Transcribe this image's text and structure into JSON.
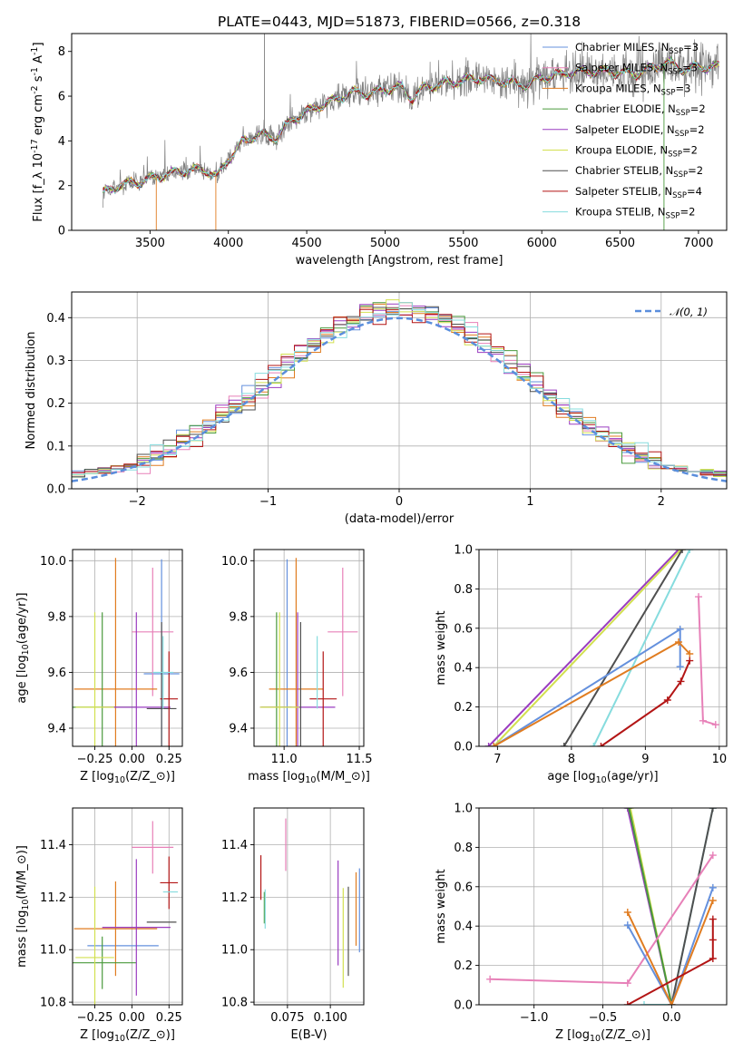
{
  "colors": {
    "chabrier_miles": "#6490dd",
    "salpeter_miles": "#e780b8",
    "kroupa_miles": "#e07c20",
    "chabrier_elodie": "#4a9a3c",
    "salpeter_elodie": "#9a3cc0",
    "kroupa_elodie": "#d2e050",
    "chabrier_stelib": "#4f4f4f",
    "salpeter_stelib": "#b31515",
    "kroupa_stelib": "#86dcde",
    "data": "#808080",
    "gaussian": "#5a8edc",
    "grid": "#b0b0b0"
  },
  "chart_data": [
    {
      "type": "line",
      "panel": "spectrum",
      "title": "PLATE=0443, MJD=51873, FIBERID=0566, z=0.318",
      "xlabel": "wavelength [Angstrom, rest frame]",
      "ylabel": "Flux [f$_\\lambda 10^{-17}$ erg cm$^{-2}$ s$^{-1}$ A$^{-1}$]",
      "xlim": [
        3000,
        7180
      ],
      "ylim": [
        0,
        8.8
      ],
      "xticks": [
        3500,
        4000,
        4500,
        5000,
        5500,
        6000,
        6500,
        7000
      ],
      "yticks": [
        0,
        2,
        4,
        6,
        8
      ],
      "grid": false,
      "legend_position": "right",
      "legend": [
        {
          "key": "chabrier_miles",
          "label": "Chabrier MILES, N",
          "sub": "SSP",
          "suffix": "=3"
        },
        {
          "key": "salpeter_miles",
          "label": "Salpeter MILES, N",
          "sub": "SSP",
          "suffix": "=3"
        },
        {
          "key": "kroupa_miles",
          "label": "Kroupa MILES, N",
          "sub": "SSP",
          "suffix": "=3"
        },
        {
          "key": "chabrier_elodie",
          "label": "Chabrier ELODIE, N",
          "sub": "SSP",
          "suffix": "=2"
        },
        {
          "key": "salpeter_elodie",
          "label": "Salpeter ELODIE, N",
          "sub": "SSP",
          "suffix": "=2"
        },
        {
          "key": "kroupa_elodie",
          "label": "Kroupa ELODIE, N",
          "sub": "SSP",
          "suffix": "=2"
        },
        {
          "key": "chabrier_stelib",
          "label": "Chabrier STELIB, N",
          "sub": "SSP",
          "suffix": "=2"
        },
        {
          "key": "salpeter_stelib",
          "label": "Salpeter STELIB, N",
          "sub": "SSP",
          "suffix": "=4"
        },
        {
          "key": "kroupa_stelib",
          "label": "Kroupa STELIB, N",
          "sub": "SSP",
          "suffix": "=2"
        }
      ],
      "continuum_points": [
        [
          3200,
          1.7
        ],
        [
          3300,
          2.0
        ],
        [
          3450,
          2.2
        ],
        [
          3600,
          2.5
        ],
        [
          3750,
          2.7
        ],
        [
          3850,
          2.7
        ],
        [
          3930,
          2.4
        ],
        [
          3990,
          3.1
        ],
        [
          4100,
          4.0
        ],
        [
          4200,
          4.3
        ],
        [
          4300,
          4.1
        ],
        [
          4400,
          4.9
        ],
        [
          4500,
          5.3
        ],
        [
          4600,
          5.6
        ],
        [
          4700,
          5.9
        ],
        [
          4800,
          6.2
        ],
        [
          4900,
          6.1
        ],
        [
          5000,
          6.3
        ],
        [
          5100,
          6.4
        ],
        [
          5175,
          5.9
        ],
        [
          5250,
          6.4
        ],
        [
          5400,
          6.6
        ],
        [
          5600,
          6.8
        ],
        [
          5800,
          6.6
        ],
        [
          5900,
          6.5
        ],
        [
          6000,
          6.8
        ],
        [
          6200,
          7.1
        ],
        [
          6400,
          7.1
        ],
        [
          6600,
          7.0
        ],
        [
          6800,
          7.5
        ],
        [
          6900,
          7.2
        ],
        [
          7000,
          7.3
        ],
        [
          7130,
          7.3
        ]
      ],
      "spikes": [
        {
          "x": 4230,
          "y": 8.8
        },
        {
          "x": 3540,
          "y": 0
        },
        {
          "x": 3920,
          "y": 0
        },
        {
          "x": 6780,
          "y": 0
        }
      ]
    },
    {
      "type": "histogram",
      "panel": "residuals",
      "xlabel": "(data-model)/error",
      "ylabel": "Normed distribution",
      "xlim": [
        -2.5,
        2.5
      ],
      "ylim": [
        0,
        0.46
      ],
      "xticks": [
        -2,
        -1,
        0,
        1,
        2
      ],
      "yticks": [
        0.0,
        0.1,
        0.2,
        0.3,
        0.4
      ],
      "grid": true,
      "legend": [
        {
          "label": "𝒩(0, 1)"
        }
      ],
      "legend_position": "top-right",
      "bin_width": 0.1
    },
    {
      "type": "scatter",
      "panel": "age-vs-Z",
      "xlabel": "Z [log$_{10}$(Z/Z$_\\odot$)]",
      "ylabel": "age  [log$_{10}$(age/yr)]",
      "xlim": [
        -0.4,
        0.34
      ],
      "ylim": [
        9.335,
        10.04
      ],
      "xticks": [
        -0.25,
        0.0,
        0.25
      ],
      "yticks": [
        9.4,
        9.6,
        9.8,
        10.0
      ],
      "grid": true,
      "points": [
        {
          "key": "chabrier_miles",
          "x": 0.2,
          "y": 9.595,
          "xerr": 0.12,
          "yerr": 0.41
        },
        {
          "key": "salpeter_miles",
          "x": 0.14,
          "y": 9.745,
          "xerr": 0.14,
          "yerr": 0.23
        },
        {
          "key": "kroupa_miles",
          "x": -0.11,
          "y": 9.54,
          "xerr": 0.28,
          "yerr": 0.47
        },
        {
          "key": "chabrier_elodie",
          "x": -0.2,
          "y": 9.475,
          "xerr": 0.23,
          "yerr": 0.34
        },
        {
          "key": "salpeter_elodie",
          "x": 0.03,
          "y": 9.475,
          "xerr": 0.23,
          "yerr": 0.34
        },
        {
          "key": "kroupa_elodie",
          "x": -0.25,
          "y": 9.475,
          "xerr": 0.13,
          "yerr": 0.34
        },
        {
          "key": "chabrier_stelib",
          "x": 0.2,
          "y": 9.47,
          "xerr": 0.1,
          "yerr": 0.31
        },
        {
          "key": "salpeter_stelib",
          "x": 0.25,
          "y": 9.505,
          "xerr": 0.06,
          "yerr": 0.17
        },
        {
          "key": "kroupa_stelib",
          "x": 0.21,
          "y": 9.6,
          "xerr": 0.07,
          "yerr": 0.13
        }
      ]
    },
    {
      "type": "scatter",
      "panel": "age-vs-mass",
      "xlabel": "mass [log$_{10}$(M/M$_\\odot$)]",
      "xlim": [
        10.8,
        11.53
      ],
      "ylim": [
        9.335,
        10.04
      ],
      "xticks": [
        11.0,
        11.5
      ],
      "yticks": [
        9.4,
        9.6,
        9.8,
        10.0
      ],
      "grid": true,
      "points": [
        {
          "key": "chabrier_miles",
          "x": 11.02,
          "y": 9.595,
          "xerr": 0.0,
          "yerr": 0.41
        },
        {
          "key": "salpeter_miles",
          "x": 11.39,
          "y": 9.745,
          "xerr": 0.1,
          "yerr": 0.23
        },
        {
          "key": "kroupa_miles",
          "x": 11.08,
          "y": 9.54,
          "xerr": 0.18,
          "yerr": 0.47
        },
        {
          "key": "chabrier_elodie",
          "x": 10.95,
          "y": 9.475,
          "xerr": 0.1,
          "yerr": 0.34
        },
        {
          "key": "salpeter_elodie",
          "x": 11.09,
          "y": 9.475,
          "xerr": 0.25,
          "yerr": 0.34
        },
        {
          "key": "kroupa_elodie",
          "x": 10.97,
          "y": 9.475,
          "xerr": 0.13,
          "yerr": 0.34
        },
        {
          "key": "chabrier_stelib",
          "x": 11.11,
          "y": 9.47,
          "xerr": 0.0,
          "yerr": 0.31
        },
        {
          "key": "salpeter_stelib",
          "x": 11.26,
          "y": 9.505,
          "xerr": 0.09,
          "yerr": 0.17
        },
        {
          "key": "kroupa_stelib",
          "x": 11.22,
          "y": 9.6,
          "xerr": 0.0,
          "yerr": 0.13
        }
      ]
    },
    {
      "type": "line",
      "panel": "mass-weight-vs-age",
      "xlabel": "age  [log$_{10}$(age/yr)]",
      "ylabel": "mass weight",
      "xlim": [
        6.75,
        10.1
      ],
      "ylim": [
        0,
        1.0
      ],
      "xticks": [
        7,
        8,
        9,
        10
      ],
      "yticks": [
        0.0,
        0.2,
        0.4,
        0.6,
        0.8,
        1.0
      ],
      "grid": true,
      "series": [
        {
          "key": "salpeter_elodie",
          "x": [
            6.88,
            9.45
          ],
          "y": [
            0.0,
            1.0
          ]
        },
        {
          "key": "kroupa_elodie",
          "x": [
            6.95,
            9.48
          ],
          "y": [
            0.0,
            1.0
          ]
        },
        {
          "key": "chabrier_stelib",
          "x": [
            7.9,
            9.5
          ],
          "y": [
            0.0,
            1.0
          ]
        },
        {
          "key": "kroupa_stelib",
          "x": [
            8.3,
            9.6
          ],
          "y": [
            0.0,
            1.0
          ]
        },
        {
          "key": "chabrier_miles",
          "x": [
            6.95,
            9.47,
            9.47
          ],
          "y": [
            0.0,
            0.595,
            0.405
          ]
        },
        {
          "key": "kroupa_miles",
          "x": [
            6.95,
            9.45,
            9.6
          ],
          "y": [
            0.0,
            0.53,
            0.47
          ]
        },
        {
          "key": "salpeter_stelib",
          "x": [
            8.4,
            9.3,
            9.48,
            9.6
          ],
          "y": [
            0.0,
            0.235,
            0.33,
            0.435
          ]
        },
        {
          "key": "salpeter_miles",
          "x": [
            9.72,
            9.78,
            9.95
          ],
          "y": [
            0.76,
            0.13,
            0.11
          ]
        }
      ]
    },
    {
      "type": "scatter",
      "panel": "mass-vs-Z",
      "xlabel": "Z [log$_{10}$(Z/Z$_\\odot$)]",
      "ylabel": "mass [log$_{10}$(M/M$_\\odot$)]",
      "xlim": [
        -0.4,
        0.34
      ],
      "ylim": [
        10.79,
        11.54
      ],
      "xticks": [
        -0.25,
        0.0,
        0.25
      ],
      "yticks": [
        10.8,
        11.0,
        11.2,
        11.4
      ],
      "grid": true,
      "points": [
        {
          "key": "chabrier_miles",
          "x": -0.06,
          "y": 11.015,
          "xerr": 0.24,
          "yerr": 0.0
        },
        {
          "key": "salpeter_miles",
          "x": 0.14,
          "y": 11.39,
          "xerr": 0.14,
          "yerr": 0.1
        },
        {
          "key": "kroupa_miles",
          "x": -0.11,
          "y": 11.08,
          "xerr": 0.28,
          "yerr": 0.18
        },
        {
          "key": "chabrier_elodie",
          "x": -0.2,
          "y": 10.95,
          "xerr": 0.23,
          "yerr": 0.1
        },
        {
          "key": "salpeter_elodie",
          "x": 0.03,
          "y": 11.085,
          "xerr": 0.23,
          "yerr": 0.26
        },
        {
          "key": "kroupa_elodie",
          "x": -0.25,
          "y": 10.97,
          "xerr": 0.13,
          "yerr": 0.27
        },
        {
          "key": "chabrier_stelib",
          "x": 0.2,
          "y": 11.105,
          "xerr": 0.1,
          "yerr": 0.0
        },
        {
          "key": "salpeter_stelib",
          "x": 0.25,
          "y": 11.255,
          "xerr": 0.06,
          "yerr": 0.1
        },
        {
          "key": "kroupa_stelib",
          "x": 0.26,
          "y": 11.22,
          "xerr": 0.05,
          "yerr": 0.0
        }
      ]
    },
    {
      "type": "scatter",
      "panel": "mass-vs-ebv",
      "xlabel": "E(B-V)",
      "xlim": [
        0.0555,
        0.1195
      ],
      "ylim": [
        10.79,
        11.54
      ],
      "xticks": [
        0.075,
        0.1
      ],
      "yticks": [
        10.8,
        11.0,
        11.2,
        11.4
      ],
      "grid": true,
      "points": [
        {
          "key": "chabrier_miles",
          "x": 0.117,
          "y": 11.15,
          "yerr": 0.16
        },
        {
          "key": "salpeter_miles",
          "x": 0.074,
          "y": 11.4,
          "yerr": 0.1
        },
        {
          "key": "kroupa_miles",
          "x": 0.115,
          "y": 11.155,
          "yerr": 0.14
        },
        {
          "key": "chabrier_elodie",
          "x": 0.0615,
          "y": 11.16,
          "yerr": 0.06
        },
        {
          "key": "salpeter_elodie",
          "x": 0.1045,
          "y": 11.14,
          "yerr": 0.2
        },
        {
          "key": "kroupa_elodie",
          "x": 0.1075,
          "y": 11.045,
          "yerr": 0.19
        },
        {
          "key": "chabrier_stelib",
          "x": 0.1105,
          "y": 11.07,
          "yerr": 0.17
        },
        {
          "key": "salpeter_stelib",
          "x": 0.0595,
          "y": 11.275,
          "yerr": 0.085
        },
        {
          "key": "kroupa_stelib",
          "x": 0.062,
          "y": 11.155,
          "yerr": 0.075
        }
      ]
    },
    {
      "type": "line",
      "panel": "mass-weight-vs-Z",
      "xlabel": "Z [log$_{10}$(Z/Z$_\\odot$)]",
      "ylabel": "mass weight",
      "xlim": [
        -1.4,
        0.4
      ],
      "ylim": [
        0,
        1.0
      ],
      "xticks": [
        -1.0,
        -0.5,
        0.0
      ],
      "yticks": [
        0.0,
        0.2,
        0.4,
        0.6,
        0.8,
        1.0
      ],
      "grid": true,
      "series": [
        {
          "key": "kroupa_elodie",
          "x": [
            -0.3,
            0.0
          ],
          "y": [
            1.0,
            0.0
          ]
        },
        {
          "key": "salpeter_elodie",
          "x": [
            -0.32,
            0.0
          ],
          "y": [
            1.0,
            0.0
          ]
        },
        {
          "key": "chabrier_elodie",
          "x": [
            -0.31,
            0.0
          ],
          "y": [
            1.0,
            0.0
          ]
        },
        {
          "key": "kroupa_stelib",
          "x": [
            -0.2,
            0.0,
            0.3
          ],
          "y": [
            0.0,
            0.0,
            1.0
          ]
        },
        {
          "key": "chabrier_stelib",
          "x": [
            0.0,
            0.3
          ],
          "y": [
            0.0,
            1.0
          ]
        },
        {
          "key": "salpeter_miles",
          "x": [
            -1.32,
            -0.32,
            0.3
          ],
          "y": [
            0.13,
            0.11,
            0.76
          ]
        },
        {
          "key": "chabrier_miles",
          "x": [
            -0.32,
            0.0,
            0.3
          ],
          "y": [
            0.405,
            0.0,
            0.595
          ]
        },
        {
          "key": "kroupa_miles",
          "x": [
            -0.32,
            0.0,
            0.3
          ],
          "y": [
            0.47,
            0.0,
            0.53
          ]
        },
        {
          "key": "salpeter_stelib",
          "x": [
            -0.32,
            0.3,
            0.3,
            0.3
          ],
          "y": [
            0.0,
            0.235,
            0.33,
            0.435
          ]
        }
      ]
    }
  ]
}
